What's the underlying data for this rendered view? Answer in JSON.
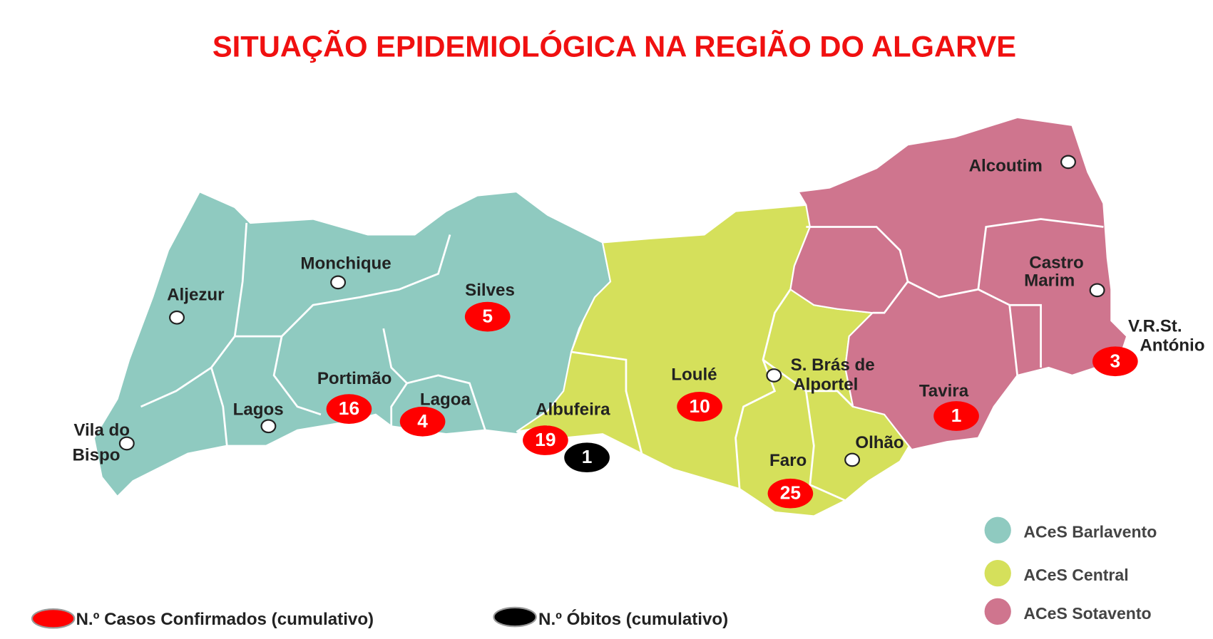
{
  "title": "SITUAÇÃO EPIDEMIOLÓGICA NA REGIÃO DO ALGARVE",
  "regions": [
    {
      "name": "ACeS Barlavento",
      "color": "#8fcac0"
    },
    {
      "name": "ACeS Central",
      "color": "#d5e05b"
    },
    {
      "name": "ACeS Sotavento",
      "color": "#cf758e"
    }
  ],
  "municipalities": [
    {
      "name": [
        "Aljezur"
      ]
    },
    {
      "name": [
        "Monchique"
      ]
    },
    {
      "name": [
        "Silves"
      ],
      "cases": 5
    },
    {
      "name": [
        "Portimão"
      ],
      "cases": 16
    },
    {
      "name": [
        "Lagoa"
      ],
      "cases": 4
    },
    {
      "name": [
        "Lagos"
      ]
    },
    {
      "name": [
        "Vila do",
        "Bispo"
      ]
    },
    {
      "name": [
        "Albufeira"
      ],
      "cases": 19,
      "deaths": 1
    },
    {
      "name": [
        "Loulé"
      ],
      "cases": 10
    },
    {
      "name": [
        "S. Brás de",
        "Alportel"
      ]
    },
    {
      "name": [
        "Faro"
      ],
      "cases": 25
    },
    {
      "name": [
        "Olhão"
      ]
    },
    {
      "name": [
        "Tavira"
      ],
      "cases": 1
    },
    {
      "name": [
        "Castro",
        "Marim"
      ]
    },
    {
      "name": [
        "Alcoutim"
      ]
    },
    {
      "name": [
        "V.R.St.",
        "António"
      ],
      "cases": 3
    }
  ],
  "legend": {
    "cases_label": "N.º Casos Confirmados (cumulativo)",
    "cases_color": "#ff0000",
    "deaths_label": "N.º Óbitos (cumulativo)",
    "deaths_color": "#000000"
  }
}
